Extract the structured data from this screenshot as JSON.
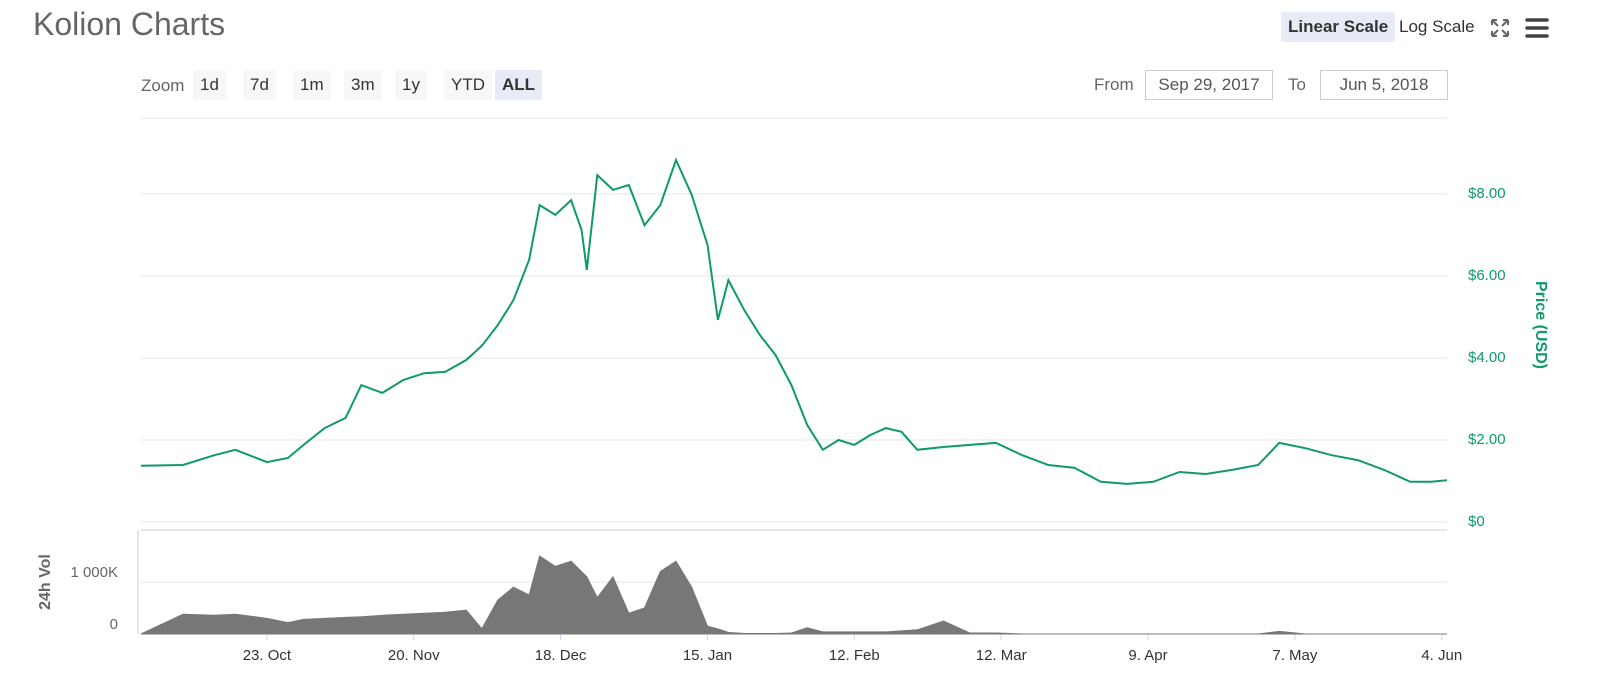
{
  "header": {
    "title": "Kolion Charts",
    "scale_buttons": [
      "Linear Scale",
      "Log Scale"
    ]
  },
  "range_selector": {
    "zoom_label": "Zoom",
    "buttons": [
      "1d",
      "7d",
      "1m",
      "3m",
      "1y",
      "YTD",
      "ALL"
    ],
    "from_label": "From",
    "from": "Sep 29, 2017",
    "to_label": "To",
    "to": "Jun 5, 2018"
  },
  "chart_data": [
    {
      "type": "line",
      "y_label": "Price (USD)",
      "color": "#0e9a6c",
      "grid": true,
      "x": [
        "2017-09-29",
        "2017-10-07",
        "2017-10-13",
        "2017-10-17",
        "2017-10-23",
        "2017-10-27",
        "2017-10-30",
        "2017-11-03",
        "2017-11-07",
        "2017-11-10",
        "2017-11-14",
        "2017-11-18",
        "2017-11-22",
        "2017-11-26",
        "2017-11-30",
        "2017-12-03",
        "2017-12-06",
        "2017-12-09",
        "2017-12-12",
        "2017-12-14",
        "2017-12-17",
        "2017-12-20",
        "2017-12-22",
        "2017-12-23",
        "2017-12-25",
        "2017-12-28",
        "2017-12-31",
        "2018-01-03",
        "2018-01-06",
        "2018-01-09",
        "2018-01-12",
        "2018-01-15",
        "2018-01-17",
        "2018-01-19",
        "2018-01-22",
        "2018-01-25",
        "2018-01-28",
        "2018-01-31",
        "2018-02-03",
        "2018-02-06",
        "2018-02-09",
        "2018-02-12",
        "2018-02-15",
        "2018-02-18",
        "2018-02-21",
        "2018-02-24",
        "2018-03-01",
        "2018-03-06",
        "2018-03-11",
        "2018-03-16",
        "2018-03-21",
        "2018-03-26",
        "2018-03-31",
        "2018-04-05",
        "2018-04-10",
        "2018-04-15",
        "2018-04-20",
        "2018-04-25",
        "2018-04-30",
        "2018-05-04",
        "2018-05-09",
        "2018-05-14",
        "2018-05-19",
        "2018-05-24",
        "2018-05-29",
        "2018-06-02",
        "2018-06-05"
      ],
      "values": [
        1.37,
        1.39,
        1.63,
        1.76,
        1.46,
        1.56,
        1.88,
        2.29,
        2.54,
        3.34,
        3.15,
        3.46,
        3.63,
        3.66,
        3.95,
        4.3,
        4.8,
        5.41,
        6.39,
        7.73,
        7.49,
        7.85,
        7.12,
        6.15,
        8.46,
        8.1,
        8.22,
        7.24,
        7.73,
        8.83,
        7.98,
        6.76,
        4.93,
        5.9,
        5.17,
        4.56,
        4.07,
        3.34,
        2.37,
        1.76,
        2.0,
        1.88,
        2.12,
        2.29,
        2.2,
        1.76,
        1.83,
        1.88,
        1.93,
        1.63,
        1.39,
        1.32,
        0.98,
        0.93,
        0.98,
        1.22,
        1.17,
        1.27,
        1.39,
        1.93,
        1.8,
        1.63,
        1.51,
        1.27,
        0.98,
        0.98,
        1.02
      ],
      "xlim": [
        "2017-09-29",
        "2018-06-05"
      ],
      "ylim": [
        0,
        10
      ],
      "yticks": [
        {
          "value": 0,
          "label": "$0"
        },
        {
          "value": 2,
          "label": "$2.00"
        },
        {
          "value": 4,
          "label": "$4.00"
        },
        {
          "value": 6,
          "label": "$6.00"
        },
        {
          "value": 8,
          "label": "$8.00"
        }
      ]
    },
    {
      "type": "area",
      "y_label": "24h Vol",
      "color": "#777777",
      "grid": true,
      "x": [
        "2017-09-29",
        "2017-10-07",
        "2017-10-13",
        "2017-10-17",
        "2017-10-23",
        "2017-10-27",
        "2017-10-30",
        "2017-11-03",
        "2017-11-07",
        "2017-11-10",
        "2017-11-14",
        "2017-11-18",
        "2017-11-22",
        "2017-11-26",
        "2017-11-30",
        "2017-12-03",
        "2017-12-06",
        "2017-12-09",
        "2017-12-12",
        "2017-12-14",
        "2017-12-17",
        "2017-12-20",
        "2017-12-22",
        "2017-12-23",
        "2017-12-25",
        "2017-12-28",
        "2017-12-31",
        "2018-01-03",
        "2018-01-06",
        "2018-01-09",
        "2018-01-12",
        "2018-01-15",
        "2018-01-17",
        "2018-01-19",
        "2018-01-22",
        "2018-01-25",
        "2018-01-28",
        "2018-01-31",
        "2018-02-03",
        "2018-02-06",
        "2018-02-09",
        "2018-02-12",
        "2018-02-15",
        "2018-02-18",
        "2018-02-21",
        "2018-02-24",
        "2018-03-01",
        "2018-03-06",
        "2018-03-11",
        "2018-03-16",
        "2018-03-21",
        "2018-03-26",
        "2018-03-31",
        "2018-04-05",
        "2018-04-10",
        "2018-04-15",
        "2018-04-20",
        "2018-04-25",
        "2018-04-30",
        "2018-05-04",
        "2018-05-09",
        "2018-05-14",
        "2018-05-19",
        "2018-05-24",
        "2018-05-29",
        "2018-06-02",
        "2018-06-05"
      ],
      "values": [
        0,
        380000,
        360000,
        380000,
        300000,
        220000,
        280000,
        300000,
        320000,
        330000,
        360000,
        380000,
        400000,
        420000,
        460000,
        100000,
        650000,
        900000,
        750000,
        1500000,
        1300000,
        1400000,
        1200000,
        1100000,
        700000,
        1100000,
        400000,
        500000,
        1200000,
        1400000,
        900000,
        150000,
        100000,
        30000,
        10000,
        10000,
        10000,
        20000,
        120000,
        40000,
        40000,
        40000,
        40000,
        40000,
        60000,
        80000,
        250000,
        20000,
        20000,
        0,
        0,
        0,
        0,
        0,
        0,
        0,
        0,
        0,
        0,
        50000,
        0,
        0,
        0,
        0,
        0,
        0,
        0
      ],
      "xlim": [
        "2017-09-29",
        "2018-06-05"
      ],
      "ylim": [
        0,
        2000000
      ],
      "yticks": [
        0,
        {
          "value": 1000000,
          "label": "1 000K"
        }
      ],
      "xticks": [
        {
          "value": "2017-10-23",
          "label": "23. Oct"
        },
        {
          "value": "2017-11-20",
          "label": "20. Nov"
        },
        {
          "value": "2017-12-18",
          "label": "18. Dec"
        },
        {
          "value": "2018-01-15",
          "label": "15. Jan"
        },
        {
          "value": "2018-02-12",
          "label": "12. Feb"
        },
        {
          "value": "2018-03-12",
          "label": "12. Mar"
        },
        {
          "value": "2018-04-09",
          "label": "9. Apr"
        },
        {
          "value": "2018-05-07",
          "label": "7. May"
        },
        {
          "value": "2018-06-04",
          "label": "4. Jun"
        }
      ]
    }
  ]
}
